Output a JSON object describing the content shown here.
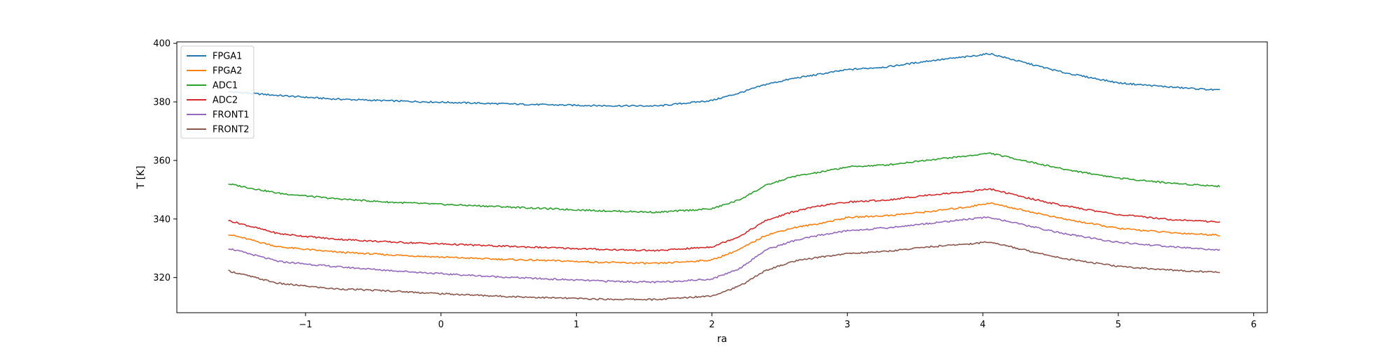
{
  "chart_data": {
    "type": "line",
    "title": "",
    "xlabel": "ra",
    "ylabel": "T [K]",
    "xlim": [
      -1.95,
      6.1
    ],
    "ylim": [
      308,
      400.5
    ],
    "xticks": [
      -1,
      0,
      1,
      2,
      3,
      4,
      5,
      6
    ],
    "xtick_labels": [
      "−1",
      "0",
      "1",
      "2",
      "3",
      "4",
      "5",
      "6"
    ],
    "yticks": [
      320,
      340,
      360,
      380,
      400
    ],
    "ytick_labels": [
      "320",
      "340",
      "360",
      "380",
      "400"
    ],
    "grid": false,
    "legend_position": "upper-left",
    "x": [
      -1.57,
      -1.2,
      -0.8,
      -0.4,
      0.0,
      0.4,
      0.8,
      1.2,
      1.6,
      2.0,
      2.2,
      2.4,
      2.6,
      2.8,
      3.0,
      3.3,
      3.6,
      3.9,
      4.05,
      4.3,
      4.6,
      5.0,
      5.4,
      5.75
    ],
    "series": [
      {
        "name": "FPGA1",
        "color": "#1f77b4",
        "values": [
          383.5,
          382.2,
          381.0,
          380.4,
          379.9,
          379.4,
          379.0,
          378.7,
          378.6,
          380.5,
          383.0,
          386.0,
          388.0,
          389.5,
          391.0,
          392.0,
          394.0,
          395.5,
          396.5,
          393.5,
          390.0,
          386.5,
          385.0,
          384.0
        ]
      },
      {
        "name": "FPGA2",
        "color": "#ff7f0e",
        "values": [
          334.8,
          330.5,
          328.8,
          327.8,
          327.0,
          326.3,
          325.8,
          325.2,
          324.8,
          326.0,
          329.5,
          334.5,
          337.0,
          338.5,
          340.5,
          341.2,
          342.5,
          344.2,
          345.5,
          343.0,
          340.0,
          336.8,
          335.3,
          334.5
        ]
      },
      {
        "name": "ADC1",
        "color": "#2ca02c",
        "values": [
          352.0,
          348.8,
          347.0,
          345.8,
          345.0,
          344.3,
          343.5,
          342.8,
          342.3,
          343.5,
          346.5,
          351.5,
          354.5,
          356.0,
          357.8,
          358.5,
          360.2,
          361.6,
          362.5,
          360.0,
          357.0,
          354.0,
          352.2,
          351.2
        ]
      },
      {
        "name": "ADC2",
        "color": "#d62728",
        "values": [
          339.5,
          335.0,
          333.2,
          332.2,
          331.5,
          330.8,
          330.2,
          329.6,
          329.2,
          330.5,
          334.0,
          339.5,
          342.5,
          344.5,
          345.8,
          346.5,
          348.2,
          349.4,
          350.3,
          347.5,
          344.5,
          341.5,
          339.8,
          339.0
        ]
      },
      {
        "name": "FRONT1",
        "color": "#9467bd",
        "values": [
          330.0,
          325.5,
          323.8,
          322.5,
          321.3,
          320.3,
          319.5,
          318.8,
          318.4,
          319.5,
          323.0,
          329.5,
          332.5,
          334.5,
          336.0,
          337.0,
          338.5,
          340.0,
          340.6,
          338.0,
          335.0,
          332.0,
          330.5,
          329.4
        ]
      },
      {
        "name": "FRONT2",
        "color": "#8c564b",
        "values": [
          322.3,
          318.0,
          316.2,
          315.5,
          314.5,
          313.7,
          313.1,
          312.6,
          312.5,
          313.8,
          317.0,
          322.5,
          325.5,
          327.0,
          328.2,
          329.0,
          330.5,
          331.5,
          332.2,
          329.5,
          326.5,
          323.8,
          322.5,
          321.8
        ]
      }
    ]
  }
}
